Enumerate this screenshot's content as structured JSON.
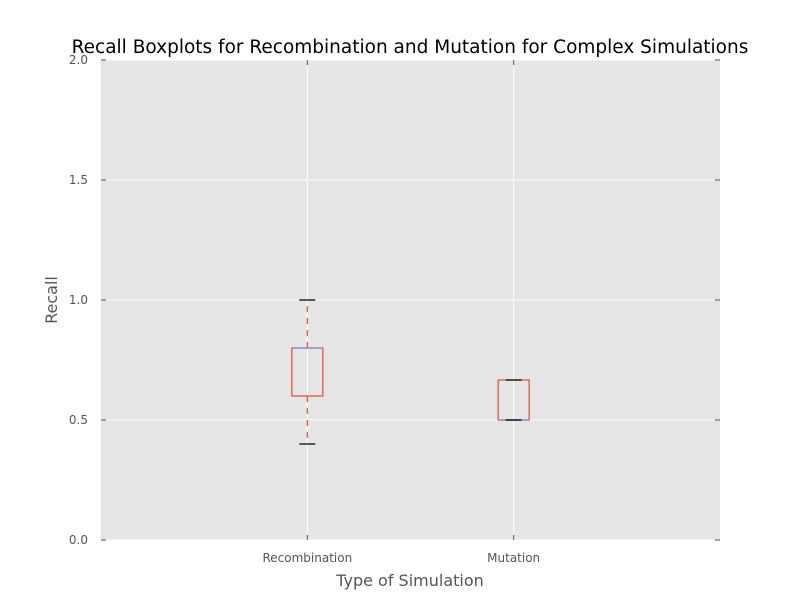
{
  "chart_data": {
    "type": "boxplot",
    "title": "Recall Boxplots for Recombination and Mutation for Complex Simulations",
    "xlabel": "Type of Simulation",
    "ylabel": "Recall",
    "ylim": [
      0.0,
      2.0
    ],
    "yticks": [
      0.0,
      0.5,
      1.0,
      1.5,
      2.0
    ],
    "ytick_labels": [
      "0.0",
      "0.5",
      "1.0",
      "1.5",
      "2.0"
    ],
    "categories": [
      "Recombination",
      "Mutation"
    ],
    "boxes": [
      {
        "whisker_low": 0.4,
        "q1": 0.6,
        "median": 0.8,
        "q3": 0.8,
        "whisker_high": 1.0
      },
      {
        "whisker_low": 0.5,
        "q1": 0.5,
        "median": 0.5,
        "q3": 0.6667,
        "whisker_high": 0.6667
      }
    ],
    "grid": true,
    "colors": {
      "plot_background": "#e5e5e5",
      "grid": "#ffffff",
      "box": "#e24a33",
      "median": "#988ed5",
      "whisker": "#e24a33",
      "cap": "#000000",
      "text": "#555555",
      "title": "#000000"
    }
  }
}
